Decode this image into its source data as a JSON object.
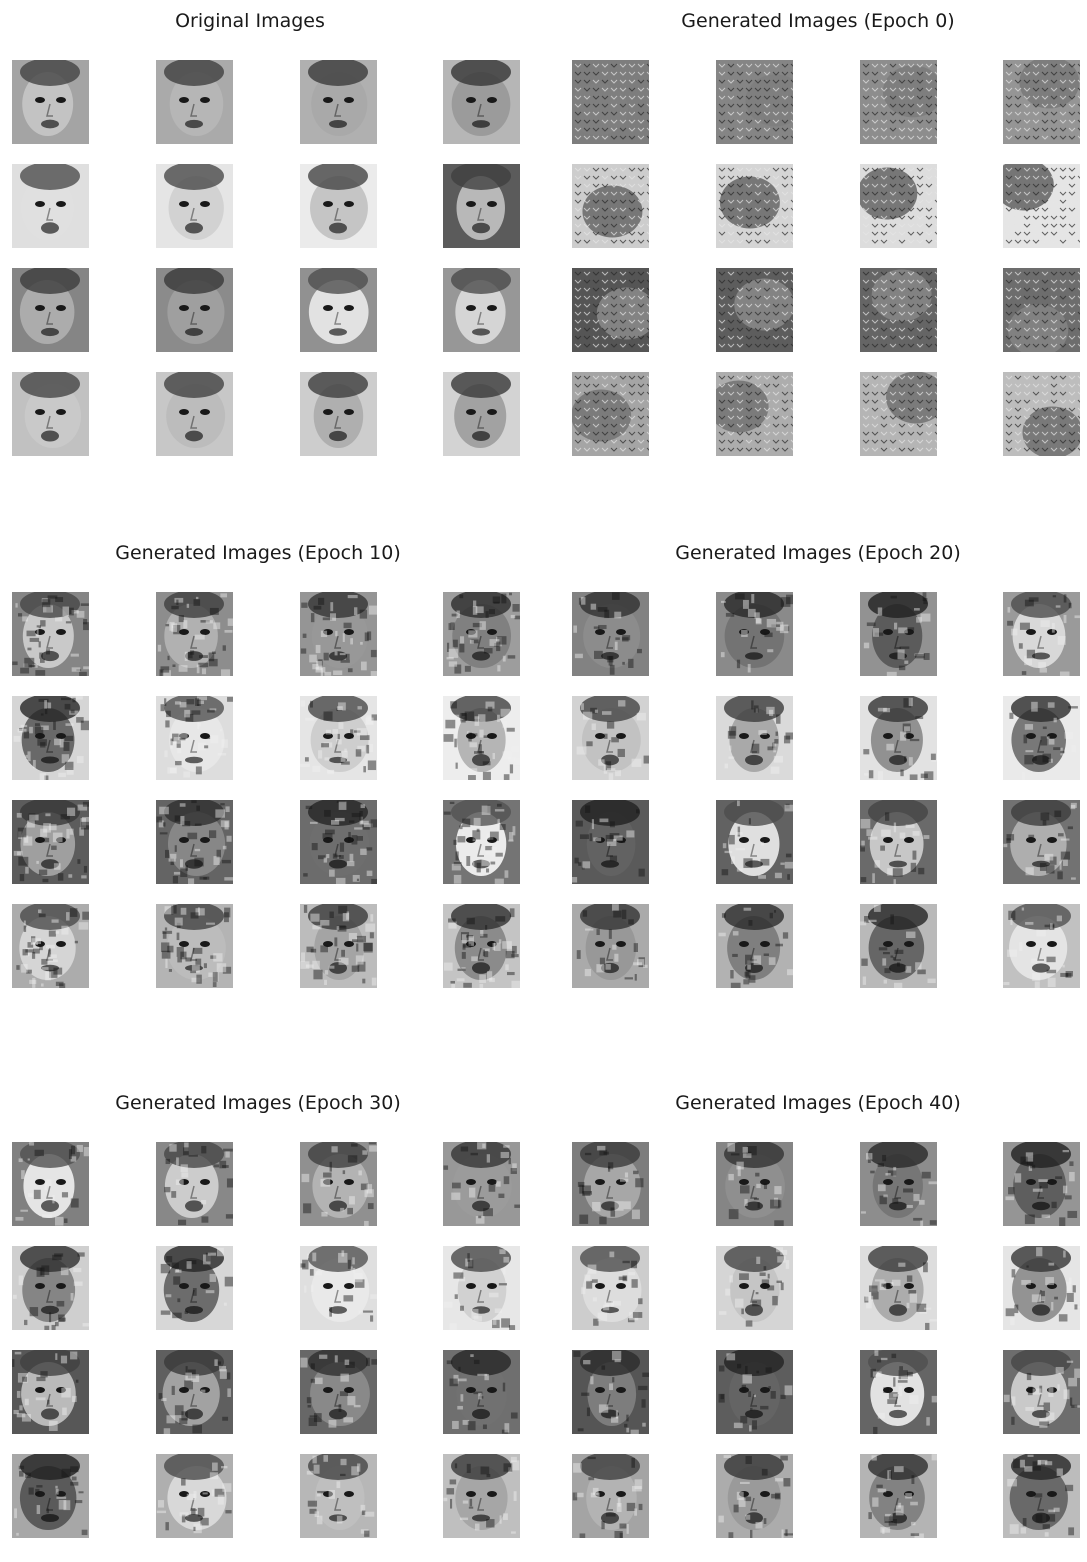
{
  "figure": {
    "panels": [
      {
        "id": "original",
        "title": "Original Images",
        "kind": "photo",
        "cols": 4,
        "rows": 4
      },
      {
        "id": "epoch0",
        "title": "Generated Images (Epoch 0)",
        "kind": "gan-noise",
        "cols": 4,
        "rows": 4
      },
      {
        "id": "epoch10",
        "title": "Generated Images (Epoch 10)",
        "kind": "gan-blurry",
        "cols": 4,
        "rows": 4
      },
      {
        "id": "epoch20",
        "title": "Generated Images (Epoch 20)",
        "kind": "gan-face-rough",
        "cols": 4,
        "rows": 4
      },
      {
        "id": "epoch30",
        "title": "Generated Images (Epoch 30)",
        "kind": "gan-face",
        "cols": 4,
        "rows": 4
      },
      {
        "id": "epoch40",
        "title": "Generated Images (Epoch 40)",
        "kind": "gan-face",
        "cols": 4,
        "rows": 4
      }
    ]
  }
}
